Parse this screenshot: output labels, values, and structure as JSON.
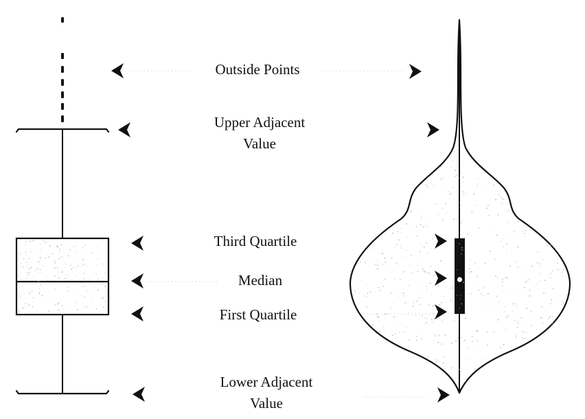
{
  "colors": {
    "ink": "#111111",
    "guide": "#c8c8c8",
    "speckle": "#b5b5b5",
    "background": "#ffffff"
  },
  "labels": {
    "outside_points": "Outside Points",
    "upper_adjacent_line1": "Upper Adjacent",
    "upper_adjacent_line2": "Value",
    "third_quartile": "Third Quartile",
    "median": "Median",
    "first_quartile": "First Quartile",
    "lower_adjacent_line1": "Lower Adjacent",
    "lower_adjacent_line2": "Value"
  },
  "icons": {
    "left_pointer": "arrowhead-left-icon",
    "right_pointer": "arrowhead-right-icon",
    "median_marker": "open-circle-icon"
  }
}
